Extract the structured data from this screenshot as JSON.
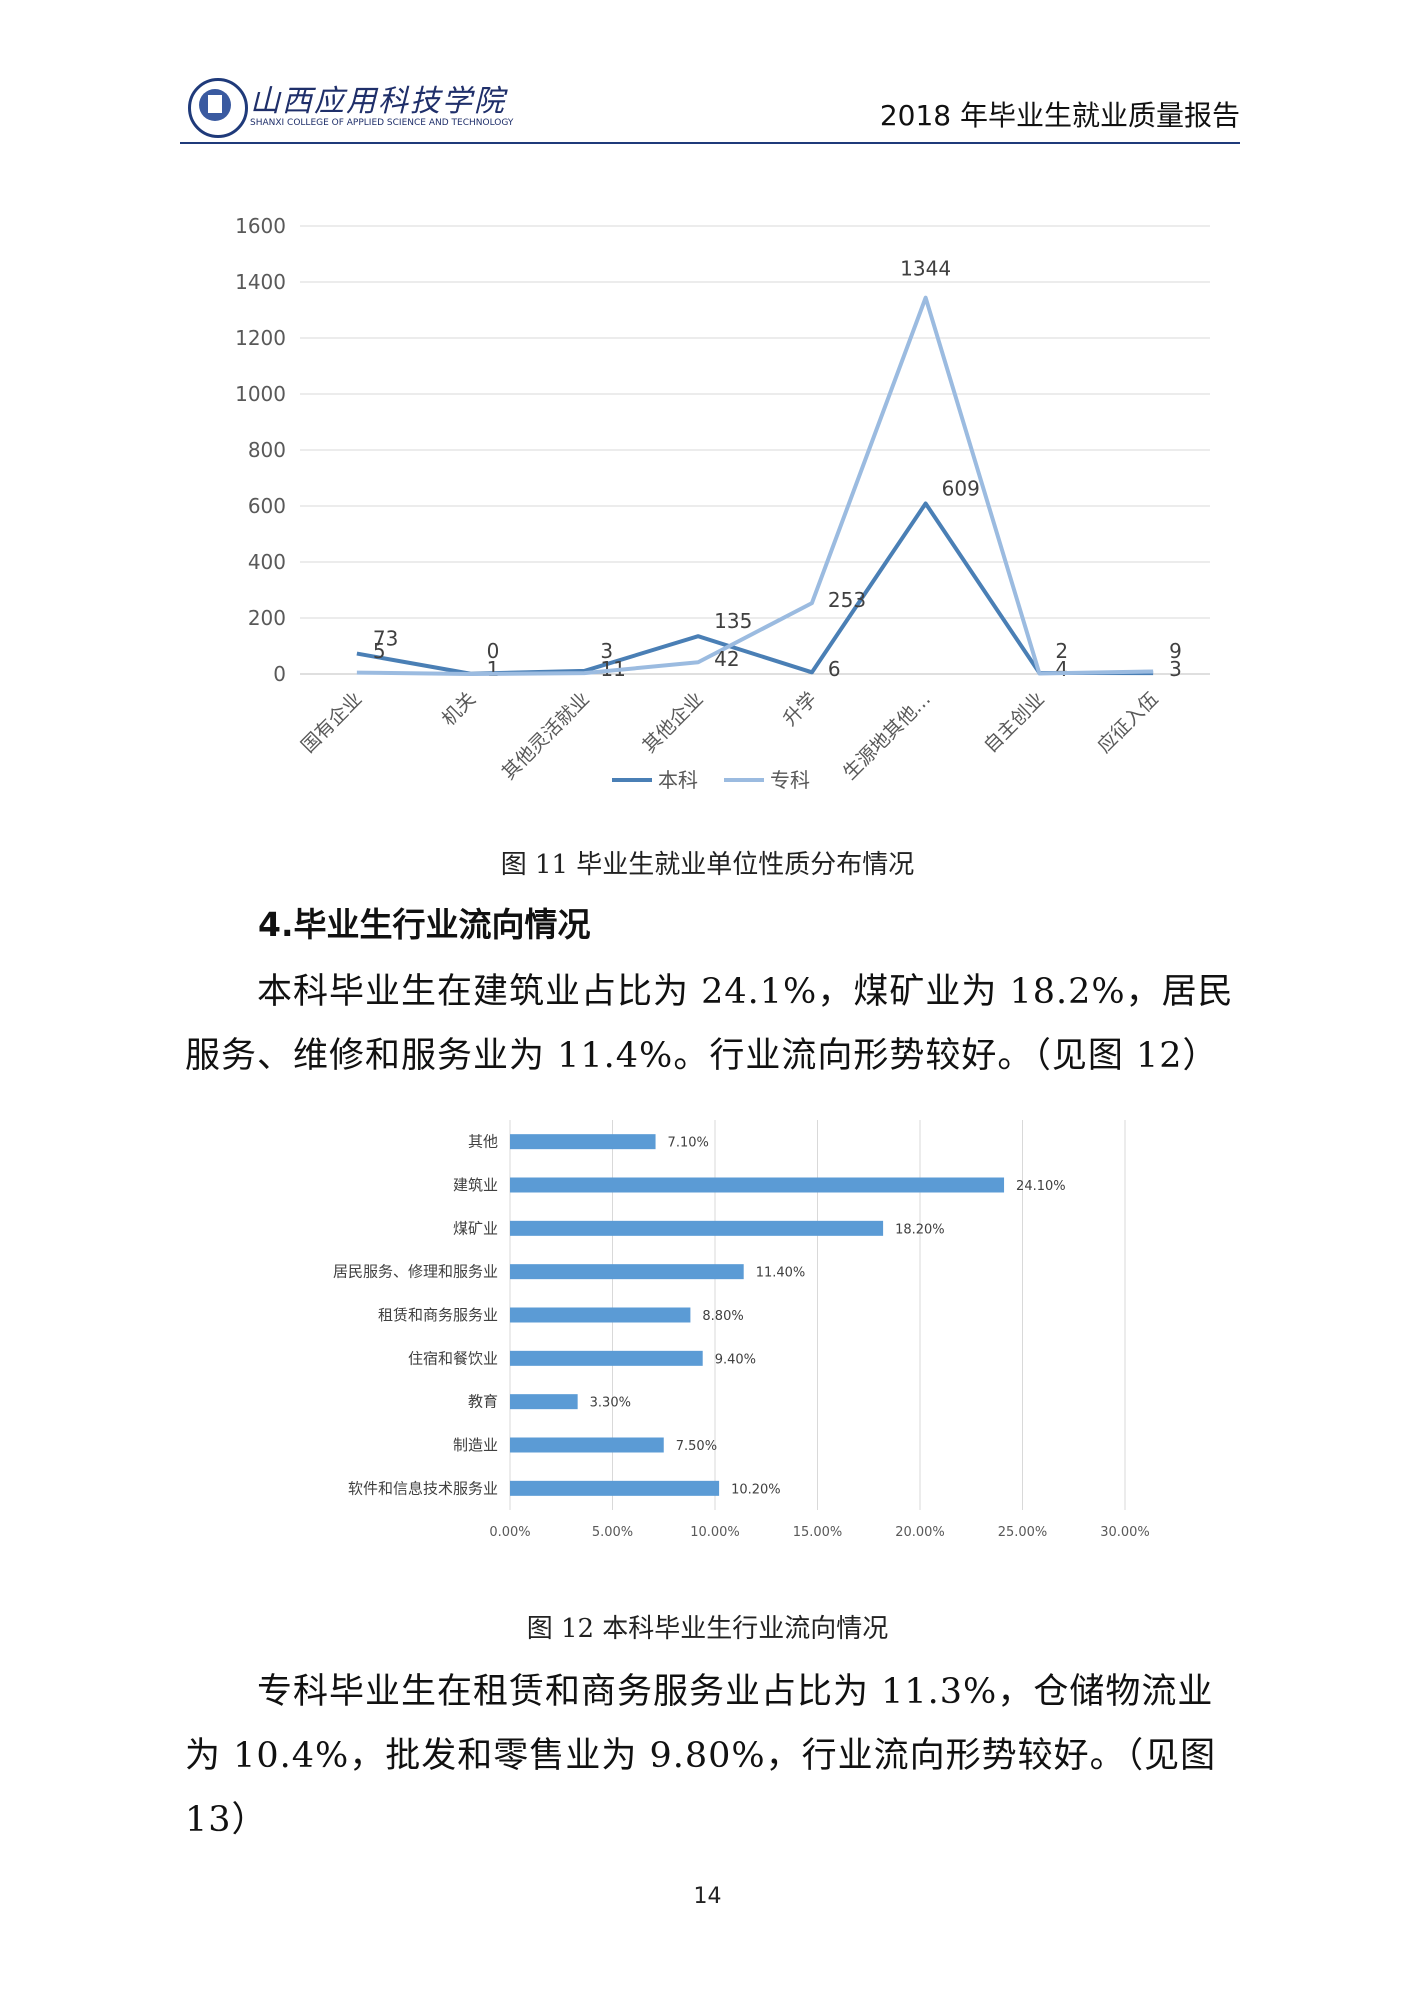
{
  "header": {
    "school_name": "山西应用科技学院",
    "school_name_en": "SHANXI COLLEGE OF APPLIED SCIENCE AND TECHNOLOGY",
    "report_title": "2018 年毕业生就业质量报告"
  },
  "figure11": {
    "caption": "图 11  毕业生就业单位性质分布情况",
    "chart_data": {
      "type": "line",
      "categories": [
        "国有企业",
        "机关",
        "其他灵活就业",
        "其他企业",
        "升学",
        "生源地其他…",
        "自主创业",
        "应征入伍"
      ],
      "series": [
        {
          "name": "本科",
          "color": "#4a7fb5",
          "values": [
            73,
            1,
            11,
            135,
            6,
            609,
            4,
            3
          ]
        },
        {
          "name": "专科",
          "color": "#9bbbe0",
          "values": [
            5,
            0,
            3,
            42,
            253,
            1344,
            2,
            9
          ]
        }
      ],
      "ylim": [
        0,
        1600
      ],
      "yticks": [
        0,
        200,
        400,
        600,
        800,
        1000,
        1200,
        1400,
        1600
      ],
      "grid": true,
      "legend": "bottom"
    }
  },
  "section4": {
    "title": "4.毕业生行业流向情况",
    "para": "本科毕业生在建筑业占比为 24.1%，煤矿业为 18.2%，居民服务、维修和服务业为 11.4%。行业流向形势较好。（见图 12）"
  },
  "figure12": {
    "caption": "图 12  本科毕业生行业流向情况",
    "chart_data": {
      "type": "bar",
      "orientation": "horizontal",
      "categories": [
        "其他",
        "建筑业",
        "煤矿业",
        "居民服务、修理和服务业",
        "租赁和商务服务业",
        "住宿和餐饮业",
        "教育",
        "制造业",
        "软件和信息技术服务业"
      ],
      "values": [
        7.1,
        24.1,
        18.2,
        11.4,
        8.8,
        9.4,
        3.3,
        7.5,
        10.2
      ],
      "value_labels": [
        "7.10%",
        "24.10%",
        "18.20%",
        "11.40%",
        "8.80%",
        "9.40%",
        "3.30%",
        "7.50%",
        "10.20%"
      ],
      "xlim": [
        0,
        30
      ],
      "xticks": [
        "0.00%",
        "5.00%",
        "10.00%",
        "15.00%",
        "20.00%",
        "25.00%",
        "30.00%"
      ],
      "bar_color": "#5b9bd5",
      "grid": true
    }
  },
  "para2": "专科毕业生在租赁和商务服务业占比为 11.3%，仓储物流业为 10.4%，批发和零售业为 9.80%，行业流向形势较好。（见图 13）",
  "page_number": "14"
}
